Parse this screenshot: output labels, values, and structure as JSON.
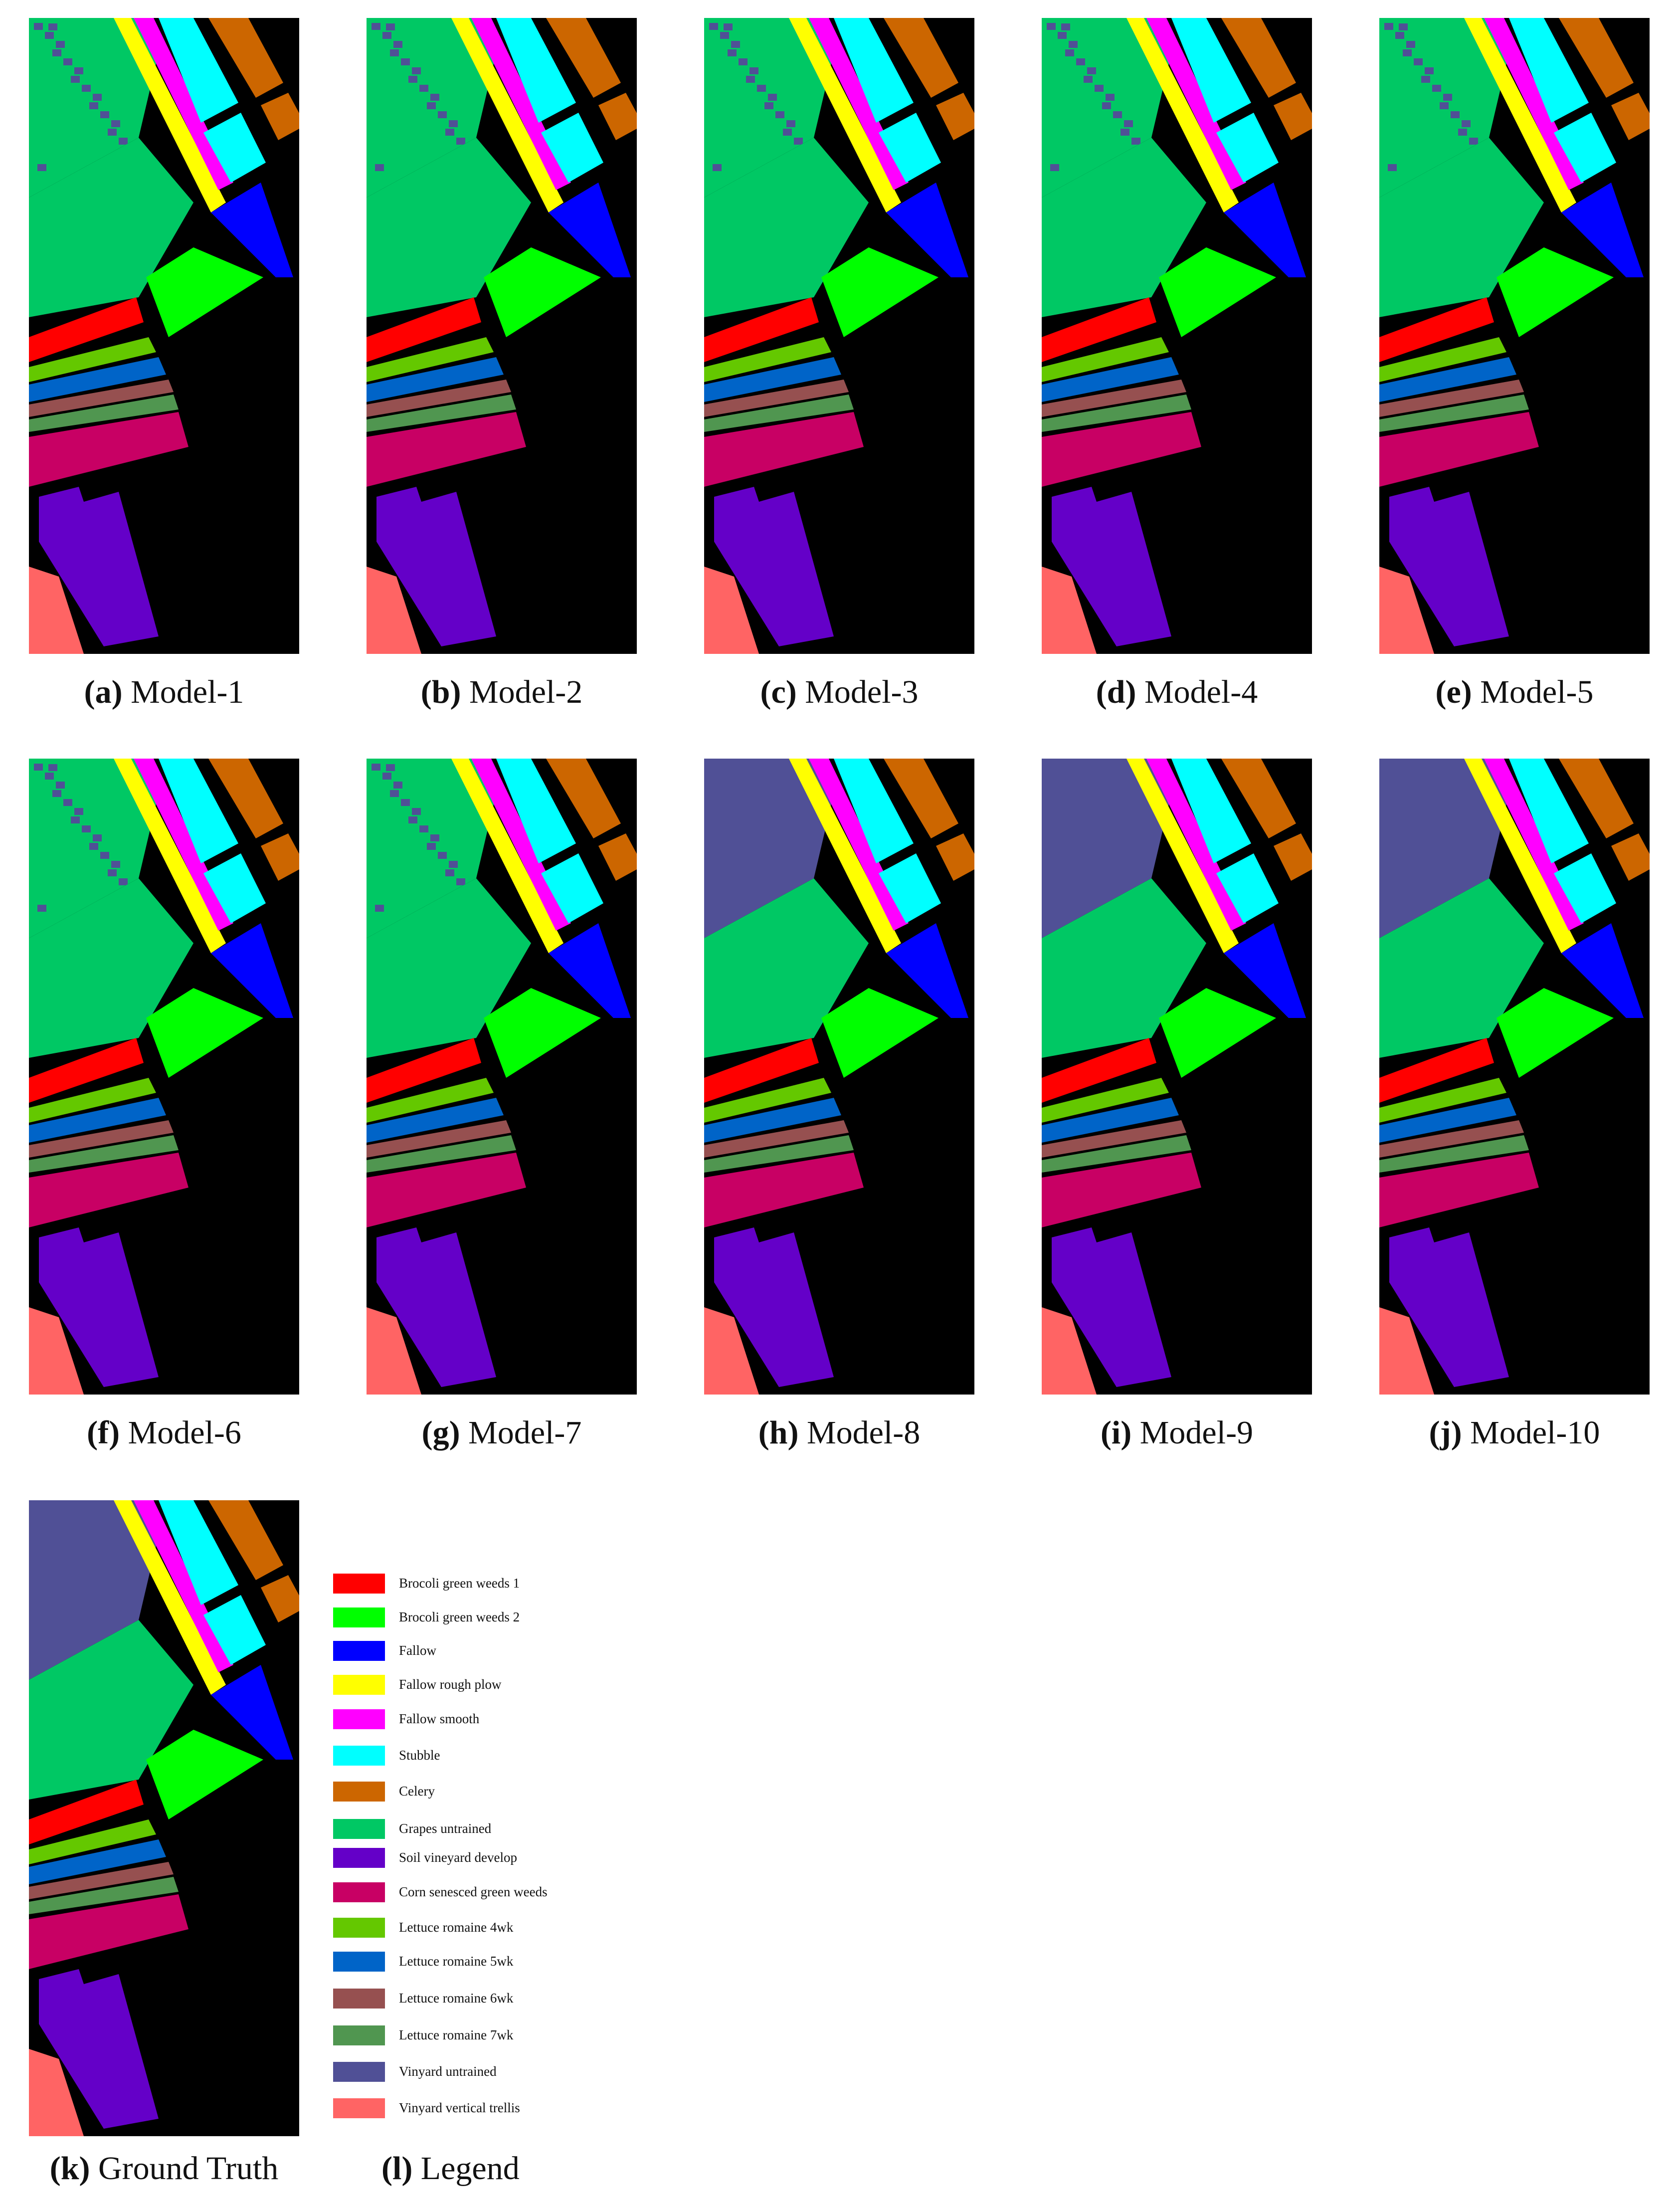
{
  "panels": [
    {
      "tag": "(a)",
      "label": "Model-1"
    },
    {
      "tag": "(b)",
      "label": "Model-2"
    },
    {
      "tag": "(c)",
      "label": "Model-3"
    },
    {
      "tag": "(d)",
      "label": "Model-4"
    },
    {
      "tag": "(e)",
      "label": "Model-5"
    },
    {
      "tag": "(f)",
      "label": "Model-6"
    },
    {
      "tag": "(g)",
      "label": "Model-7"
    },
    {
      "tag": "(h)",
      "label": "Model-8"
    },
    {
      "tag": "(i)",
      "label": "Model-9"
    },
    {
      "tag": "(j)",
      "label": "Model-10"
    },
    {
      "tag": "(k)",
      "label": "Ground Truth"
    }
  ],
  "legend_caption": {
    "tag": "(l)",
    "label": "Legend"
  },
  "legend": [
    {
      "label": "Brocoli green weeds 1",
      "color": "#ff0000"
    },
    {
      "label": "Brocoli green weeds 2",
      "color": "#00ff00"
    },
    {
      "label": "Fallow",
      "color": "#0000ff"
    },
    {
      "label": "Fallow rough plow",
      "color": "#ffff00"
    },
    {
      "label": "Fallow smooth",
      "color": "#ff00ff"
    },
    {
      "label": "Stubble",
      "color": "#00ffff"
    },
    {
      "label": "Celery",
      "color": "#cc6600"
    },
    {
      "label": "Grapes untrained",
      "color": "#00c864"
    },
    {
      "label": "Soil vineyard develop",
      "color": "#6400c8"
    },
    {
      "label": "Corn senesced green weeds",
      "color": "#c80064"
    },
    {
      "label": "Lettuce romaine 4wk",
      "color": "#64c800"
    },
    {
      "label": "Lettuce romaine 5wk",
      "color": "#0064c8"
    },
    {
      "label": "Lettuce romaine 6wk",
      "color": "#965050"
    },
    {
      "label": "Lettuce romaine 7wk",
      "color": "#509650"
    },
    {
      "label": "Vinyard untrained",
      "color": "#505096"
    },
    {
      "label": "Vinyard vertical trellis",
      "color": "#ff6464"
    }
  ]
}
